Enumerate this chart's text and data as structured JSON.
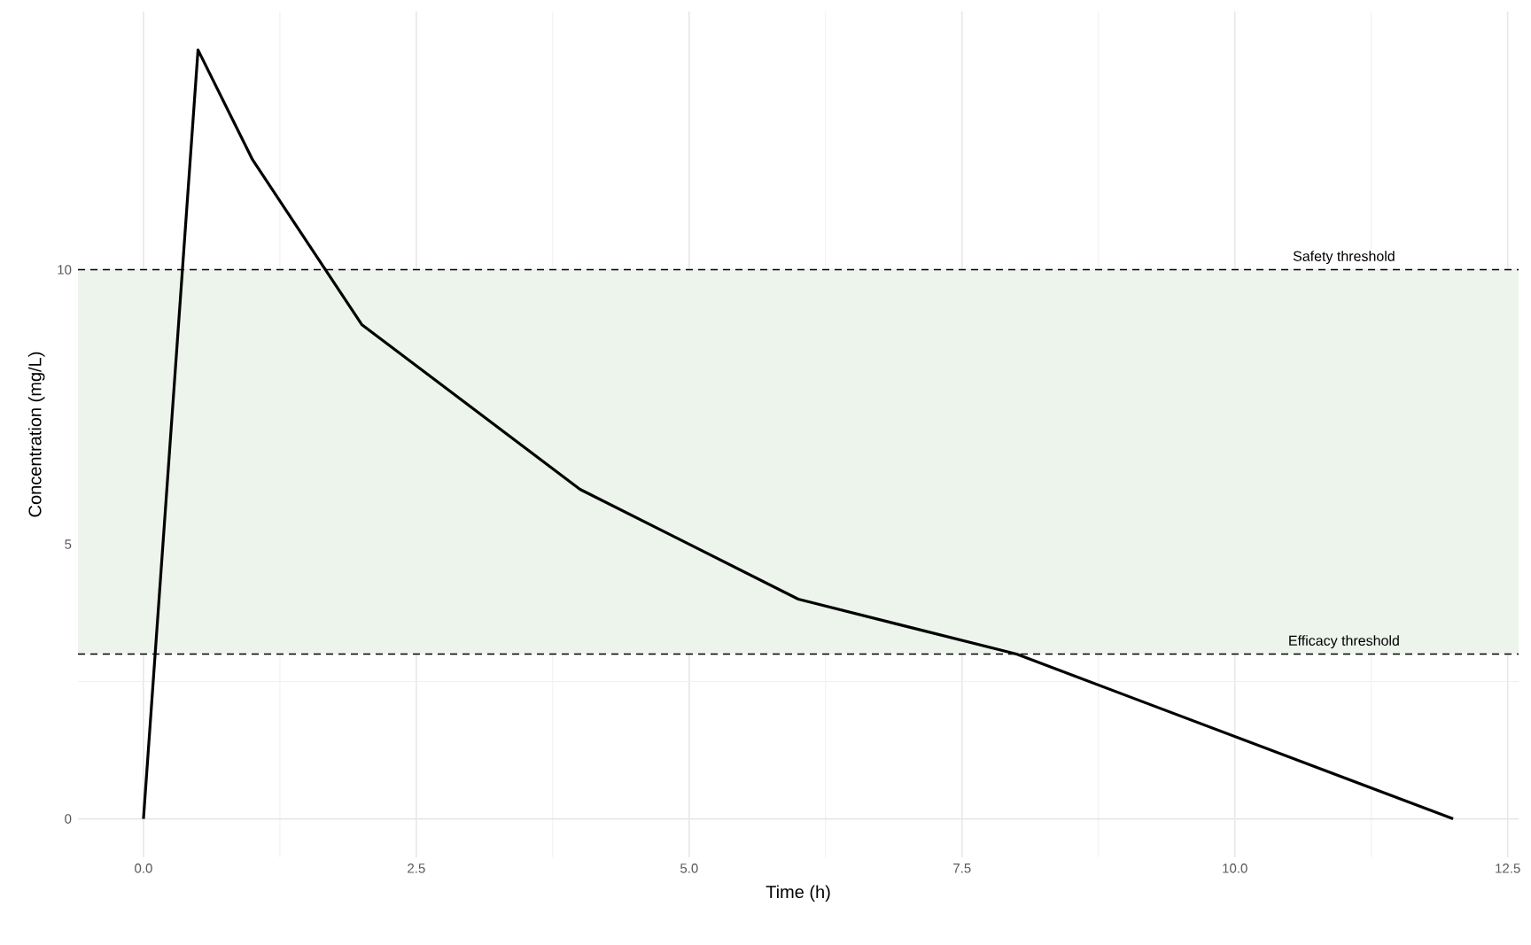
{
  "chart_data": {
    "type": "line",
    "xlabel": "Time (h)",
    "ylabel": "Concentration (mg/L)",
    "x": [
      0,
      0.5,
      1,
      2,
      4,
      6,
      8,
      12
    ],
    "values": [
      0,
      14,
      12,
      9,
      6,
      4,
      3,
      0
    ],
    "color": "#000000",
    "line_style": "solid",
    "marker": "none",
    "grid": true,
    "xlim": [
      -0.6,
      12.6
    ],
    "ylim": [
      -0.7,
      14.7
    ],
    "xticks": [
      {
        "value": 0,
        "label": "0.0"
      },
      {
        "value": 2.5,
        "label": "2.5"
      },
      {
        "value": 5,
        "label": "5.0"
      },
      {
        "value": 7.5,
        "label": "7.5"
      },
      {
        "value": 10,
        "label": "10.0"
      },
      {
        "value": 12.5,
        "label": "12.5"
      }
    ],
    "yticks": [
      0,
      5,
      10
    ],
    "ref_lines": [
      {
        "axis": "y",
        "value": 10,
        "label": "Safety threshold",
        "color": "#000000",
        "line_style": "dashed"
      },
      {
        "axis": "y",
        "value": 3,
        "label": "Efficacy threshold",
        "color": "#000000",
        "line_style": "dashed"
      }
    ],
    "bands": [
      {
        "axis": "y",
        "from": 3,
        "to": 10,
        "color": "#edf4ec"
      }
    ]
  }
}
